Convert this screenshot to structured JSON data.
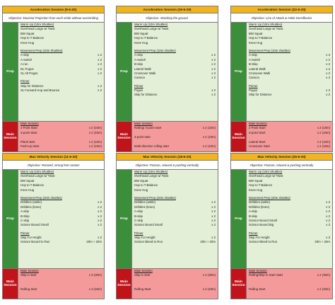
{
  "cards": [
    {
      "title": "Acceleration Session (9-6-20)",
      "objective": "Objective: Maximal Projection from each stride without overstriding",
      "prep_label": "Prep",
      "main_label": "Main Session",
      "warmup_heading": "Warm Up (10m Shuttles)",
      "warmup": [
        "Overhead Lunge w/ Twist",
        "BW Squat",
        "Hop to T-Balance",
        "Knee Hug"
      ],
      "movement_heading": "Movement Prep (10m Shuttles)",
      "movement": [
        {
          "name": "A-skip",
          "amount": "x 2"
        },
        {
          "name": "A-switch",
          "amount": "x 2"
        },
        {
          "name": "A-run",
          "amount": "x 2"
        },
        {
          "name": "DL Pogos",
          "amount": "x 2"
        },
        {
          "name": "SL Alt Pogos",
          "amount": "x 2"
        }
      ],
      "primer_heading": "Primer",
      "primer": [
        {
          "name": "Skip for Distance",
          "amount": "x 2"
        },
        {
          "name": "SL Forward Hop and Bounce",
          "amount": "x 2"
        }
      ],
      "main_heading": "Main Session",
      "main": [
        {
          "name": "2 Point Start",
          "amount": "x 2 (10m)"
        },
        {
          "name": "3-point Start",
          "amount": "x 2 (10m)"
        },
        {
          "name": "",
          "amount": ""
        },
        {
          "name": "Plank start",
          "amount": "x 2 (10m)"
        },
        {
          "name": "Push-Up start",
          "amount": "x 2 (10m)"
        }
      ]
    },
    {
      "title": "Acceleration Session (15-6-20)",
      "objective": "Objective: Attacking the ground.",
      "prep_label": "Prep",
      "main_label": "Main Session",
      "warmup_heading": "Warm Up (10m Shuttles)",
      "warmup": [
        "Overhead Lunge w/ Twist",
        "BW Squat",
        "Hop to T-Balance",
        "Knee Hug"
      ],
      "movement_heading": "Movement Prep (10m shuttles)",
      "movement": [
        {
          "name": "A-skip",
          "amount": "x 2"
        },
        {
          "name": "A-switch",
          "amount": "x 2"
        },
        {
          "name": "B-skip",
          "amount": "x 2"
        },
        {
          "name": "Lateral Walk",
          "amount": "x 2"
        },
        {
          "name": "Crossover Walk",
          "amount": "x 2"
        },
        {
          "name": "Carioca",
          "amount": "x 2"
        }
      ],
      "primer_heading": "Primer",
      "primer": [
        {
          "name": "Pogos",
          "amount": "x 2"
        },
        {
          "name": "Skip for Distance",
          "amount": "x 2"
        }
      ],
      "main_heading": "Main Session",
      "main": [
        {
          "name": "Rolling/ 3-point start",
          "amount": "x 2 (10m)"
        },
        {
          "name": "",
          "amount": ""
        },
        {
          "name": "3-point start",
          "amount": "x 4 (10m)"
        },
        {
          "name": "",
          "amount": ""
        },
        {
          "name": "Multi-direction rolling start",
          "amount": "x 2 (10m)"
        }
      ]
    },
    {
      "title": "Acceleration Session (22-6-20)",
      "objective": "Objective: Line of Attack & Ankle Dorsiflexion",
      "prep_label": "Prep",
      "main_label": "Main Session",
      "warmup_heading": "Warm Up (10m Shuttles)",
      "warmup": [
        "Overhead Lunge w/ Twist",
        "BW Squat",
        "Hop to T-Balance",
        "Knee Hug"
      ],
      "movement_heading": "Movement Prep (10m shuttles)",
      "movement": [
        {
          "name": "A-skip",
          "amount": "x 2"
        },
        {
          "name": "A-switch",
          "amount": "x 2"
        },
        {
          "name": "B-Skip",
          "amount": "x 2"
        },
        {
          "name": "Lateral Walk",
          "amount": "x 2"
        },
        {
          "name": "Crossover Walk",
          "amount": "x 2"
        },
        {
          "name": "Carioca",
          "amount": "x 2"
        }
      ],
      "primer_heading": "Primer",
      "primer": [
        {
          "name": "Pogos",
          "amount": "x 2"
        },
        {
          "name": "Skip for Distance",
          "amount": "x 2"
        }
      ],
      "main_heading": "Main Session",
      "main": [
        {
          "name": "2 Point Start",
          "amount": "x 2 (10m)"
        },
        {
          "name": "3-point Start",
          "amount": "x 2 (10m)"
        },
        {
          "name": "",
          "amount": ""
        },
        {
          "name": "Lateral Start",
          "amount": "x 2 (10m)"
        },
        {
          "name": "Crossover Start",
          "amount": "x 2 (10m)"
        }
      ]
    },
    {
      "title": "Max Velocity Session (11-6-20)",
      "objective": "Objective: Relaxed, strong feet contact",
      "prep_label": "Prep",
      "main_label": "Main Session",
      "warmup_heading": "Warm Up (10m Shuttles)",
      "warmup": [
        "Overhead Lunge w/ Twist",
        "BW Squat",
        "Hop to T-Balance",
        "Knee Hug"
      ],
      "movement_heading": "Movement Prep (20m shuttles)",
      "movement": [
        {
          "name": "Dribbles (ankle)",
          "amount": "x 2"
        },
        {
          "name": "Dribbles (knee)",
          "amount": "x 2"
        },
        {
          "name": "A-skip",
          "amount": "x 2"
        },
        {
          "name": "B-Skip",
          "amount": "x 2"
        },
        {
          "name": "C-skip",
          "amount": "x 2"
        },
        {
          "name": "Scissor Bound Small",
          "amount": "x 2"
        }
      ],
      "primer_heading": "Primer",
      "primer": [
        {
          "name": "Skip For Height",
          "amount": "x 2"
        },
        {
          "name": "Scissor Bound to Run",
          "amount": "20m + 20m"
        }
      ],
      "main_heading": "Main Session",
      "main": [
        {
          "name": "Skip in start",
          "amount": "x 3 (30m)"
        },
        {
          "name": "",
          "amount": ""
        },
        {
          "name": "",
          "amount": ""
        },
        {
          "name": "Rolling Start",
          "amount": "x 3 (40m)"
        },
        {
          "name": "",
          "amount": ""
        }
      ]
    },
    {
      "title": "Max Velocity Session (18-6-20)",
      "objective": "Objective: Posture, relaxed & pushing vertically",
      "prep_label": "Prep",
      "main_label": "Main Session",
      "warmup_heading": "Warm Up (10m Shuttles)",
      "warmup": [
        "Overhead Lunge w/ Twist",
        "BW Squat",
        "Hop to T-Balance",
        "Knee Hug"
      ],
      "movement_heading": "Movement Prep (20m shuttles)",
      "movement": [
        {
          "name": "Dribbles (ankle)",
          "amount": "x 2"
        },
        {
          "name": "Dribbles (knee)",
          "amount": "x 2"
        },
        {
          "name": "A-skip",
          "amount": "x 2"
        },
        {
          "name": "B-skip",
          "amount": "x 2"
        },
        {
          "name": "C-skip",
          "amount": "x 2"
        },
        {
          "name": "Scissor Bound Small",
          "amount": "x 2"
        }
      ],
      "primer_heading": "Primer",
      "primer": [
        {
          "name": "Skip For Height",
          "amount": "x 2"
        },
        {
          "name": "Scissor Bleed to Run",
          "amount": "20m + 20m"
        }
      ],
      "main_heading": "Main Session",
      "main": [
        {
          "name": "Skip in start",
          "amount": "x 3 (30m)"
        },
        {
          "name": "",
          "amount": ""
        },
        {
          "name": "",
          "amount": ""
        },
        {
          "name": "Rolling Start",
          "amount": "x 3 (40m)"
        },
        {
          "name": "",
          "amount": ""
        }
      ]
    },
    {
      "title": "Max Velocity Session (25-6-20)",
      "objective": "Objective: Posture, relaxed & pushing vertically",
      "prep_label": "Prep",
      "main_label": "Main Session",
      "warmup_heading": "Warm Up (10m Shuttles)",
      "warmup": [
        "Overhead Lunge w/ Twist",
        "BW Squat",
        "Hop to T-Balance",
        "Knee Hug"
      ],
      "movement_heading": "Movement Prep (20m shuttles)",
      "movement": [
        {
          "name": "Dribbles (ankle)",
          "amount": "x 2"
        },
        {
          "name": "Dribbles (knee)",
          "amount": "x 2"
        },
        {
          "name": "A-skip",
          "amount": "x 2"
        },
        {
          "name": "B-skip",
          "amount": "x 2"
        },
        {
          "name": "Scissor Bound Small",
          "amount": "x 2"
        },
        {
          "name": "Scissor Bound Big",
          "amount": "x 2"
        }
      ],
      "primer_heading": "Primer",
      "primer": [
        {
          "name": "Skip For Height",
          "amount": "x 2"
        },
        {
          "name": "Scissor Bleed to Run",
          "amount": "20m + 20m"
        }
      ],
      "main_heading": "Main Session",
      "main": [
        {
          "name": "Rolling/Skip In Start Start",
          "amount": "x 2 (30m)"
        },
        {
          "name": "",
          "amount": ""
        },
        {
          "name": "",
          "amount": ""
        },
        {
          "name": "Rolling Start",
          "amount": "x 2 (40m)"
        },
        {
          "name": "",
          "amount": ""
        }
      ]
    }
  ]
}
